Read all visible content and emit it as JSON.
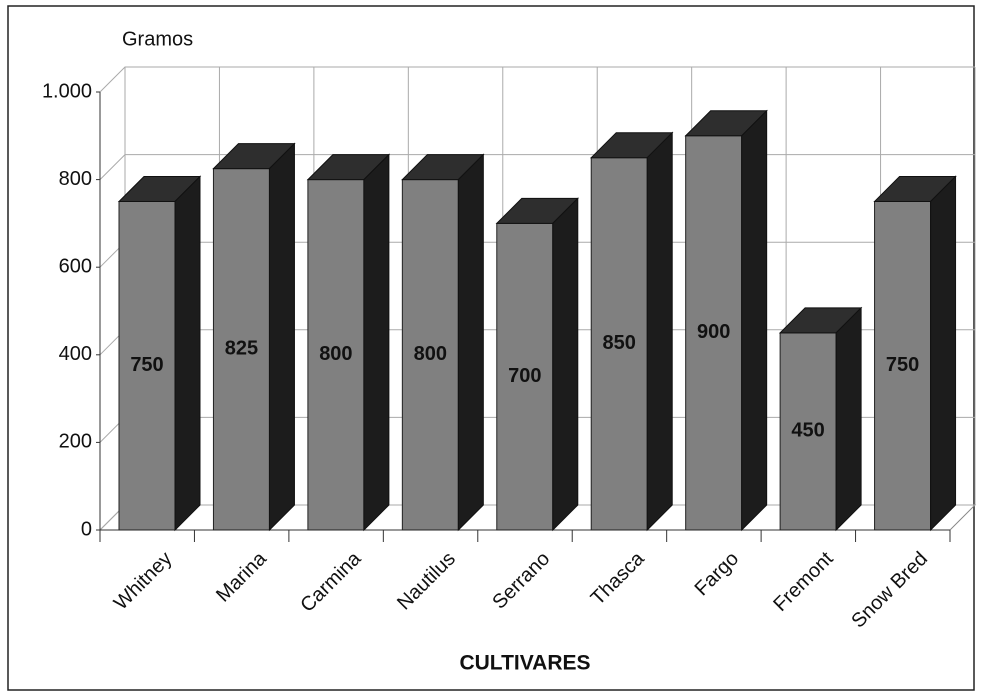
{
  "chart_data": {
    "type": "bar",
    "y_label": "Gramos",
    "x_label": "CULTIVARES",
    "categories": [
      "Whitney",
      "Marina",
      "Carmina",
      "Nautilus",
      "Serrano",
      "Thasca",
      "Fargo",
      "Fremont",
      "Snow Bred"
    ],
    "values": [
      750,
      825,
      800,
      800,
      700,
      850,
      900,
      450,
      750
    ],
    "color": "#808080",
    "ylim": [
      0,
      1000
    ],
    "yticks": [
      0,
      200,
      400,
      600,
      800,
      {
        "value": 1000,
        "label": "1.000"
      }
    ],
    "grid": true
  }
}
